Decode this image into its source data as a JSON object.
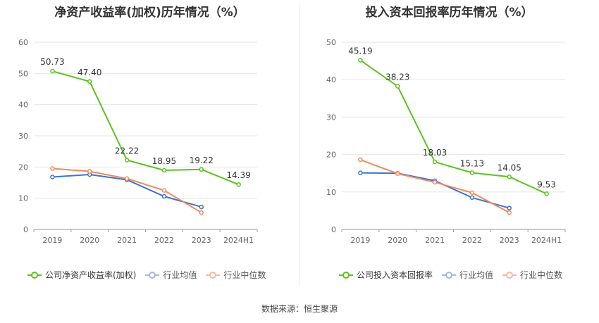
{
  "source": "数据来源：恒生聚源",
  "chart_data": [
    {
      "type": "line",
      "title": "净资产收益率(加权)历年情况（%）",
      "categories": [
        "2019",
        "2020",
        "2021",
        "2022",
        "2023",
        "2024H1"
      ],
      "ylim": [
        0,
        60
      ],
      "yticks": [
        0,
        10,
        20,
        30,
        40,
        50,
        60
      ],
      "grid": true,
      "legend_position": "bottom",
      "series": [
        {
          "name": "公司净资产收益率(加权)",
          "color": "#5bc21f",
          "values": [
            50.73,
            47.4,
            22.22,
            18.95,
            19.22,
            14.39
          ],
          "labels": [
            "50.73",
            "47.40",
            "22.22",
            "18.95",
            "19.22",
            "14.39"
          ]
        },
        {
          "name": "行业均值",
          "color": "#3c72d4",
          "values": [
            16.8,
            17.6,
            15.9,
            10.6,
            7.2,
            null
          ]
        },
        {
          "name": "行业中位数",
          "color": "#f08a5d",
          "values": [
            19.5,
            18.6,
            16.3,
            12.5,
            5.4,
            null
          ]
        }
      ]
    },
    {
      "type": "line",
      "title": "投入资本回报率历年情况（%）",
      "categories": [
        "2019",
        "2020",
        "2021",
        "2022",
        "2023",
        "2024H1"
      ],
      "ylim": [
        0,
        50
      ],
      "yticks": [
        0,
        10,
        20,
        30,
        40,
        50
      ],
      "grid": true,
      "legend_position": "bottom",
      "series": [
        {
          "name": "公司投入资本回报率",
          "color": "#5bc21f",
          "values": [
            45.19,
            38.23,
            18.03,
            15.13,
            14.05,
            9.53
          ],
          "labels": [
            "45.19",
            "38.23",
            "18.03",
            "15.13",
            "14.05",
            "9.53"
          ]
        },
        {
          "name": "行业均值",
          "color": "#3c72d4",
          "values": [
            15.1,
            15.0,
            13.0,
            8.5,
            5.7,
            null
          ]
        },
        {
          "name": "行业中位数",
          "color": "#f08a5d",
          "values": [
            18.6,
            14.9,
            12.6,
            9.8,
            4.5,
            null
          ]
        }
      ]
    }
  ]
}
